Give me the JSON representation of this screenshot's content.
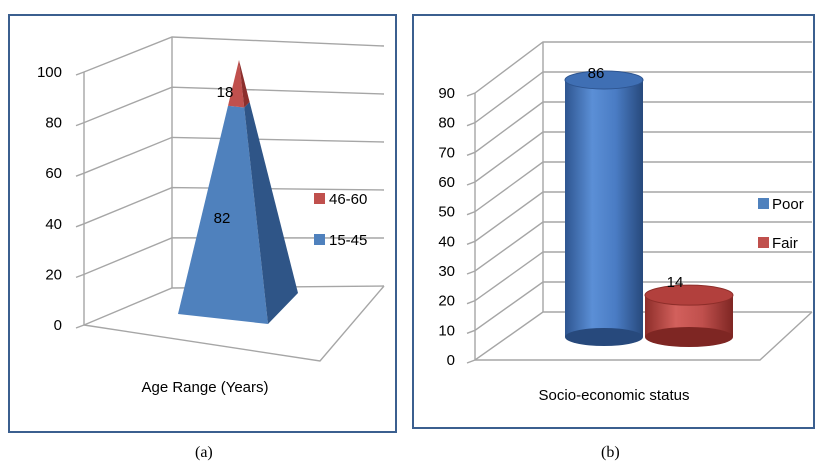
{
  "chart_data": [
    {
      "type": "pyramid",
      "xlabel": "Age Range (Years)",
      "ylabel": "",
      "ylim": [
        0,
        100
      ],
      "yticks": [
        0,
        20,
        40,
        60,
        80,
        100
      ],
      "series": [
        {
          "name": "15-45",
          "value": 82,
          "color": "#4f81bd"
        },
        {
          "name": "46-60",
          "value": 18,
          "color": "#c0504d"
        }
      ],
      "legend_position": "right",
      "grid": true
    },
    {
      "type": "bar",
      "xlabel": "Socio-economic status",
      "ylabel": "",
      "ylim": [
        0,
        90
      ],
      "yticks": [
        0,
        10,
        20,
        30,
        40,
        50,
        60,
        70,
        80,
        90
      ],
      "series": [
        {
          "name": "Poor",
          "value": 86,
          "color": "#4f81bd"
        },
        {
          "name": "Fair",
          "value": 14,
          "color": "#c0504d"
        }
      ],
      "legend_position": "right",
      "grid": true
    }
  ],
  "captions": {
    "a": "(a)",
    "b": "(b)"
  }
}
